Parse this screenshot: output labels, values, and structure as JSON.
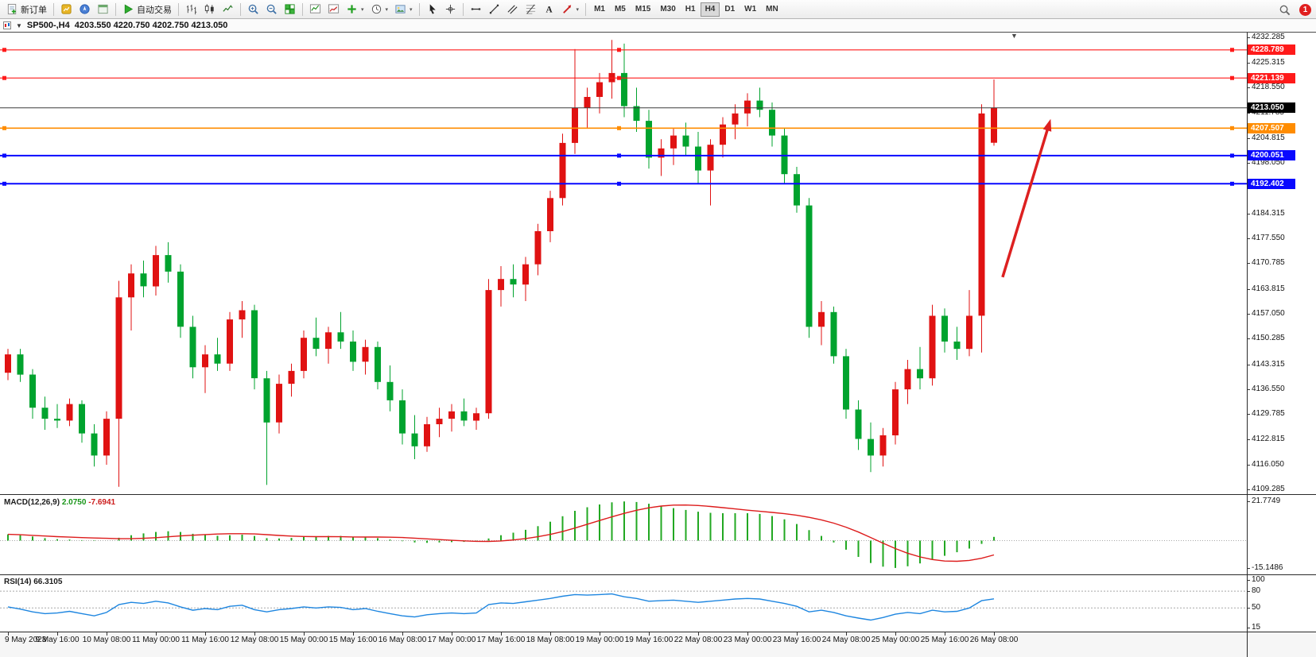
{
  "toolbar": {
    "groups": [
      {
        "items": [
          {
            "name": "new-order",
            "icon": "doc",
            "label": "新订单"
          }
        ]
      },
      {
        "items": [
          {
            "name": "market-watch",
            "icon": "mw"
          },
          {
            "name": "navigator",
            "icon": "nav"
          },
          {
            "name": "data-window",
            "icon": "dw"
          }
        ]
      },
      {
        "items": [
          {
            "name": "autotrading",
            "icon": "play",
            "label": "自动交易"
          }
        ]
      },
      {
        "items": [
          {
            "name": "bar-chart",
            "icon": "bars"
          },
          {
            "name": "candle-chart",
            "icon": "candles"
          },
          {
            "name": "line-chart",
            "icon": "linec"
          }
        ]
      },
      {
        "items": [
          {
            "name": "zoom-in",
            "icon": "zoomin"
          },
          {
            "name": "zoom-out",
            "icon": "zoomout"
          },
          {
            "name": "tile-windows",
            "icon": "grid"
          }
        ]
      },
      {
        "items": [
          {
            "name": "indicators",
            "icon": "ind1"
          },
          {
            "name": "indicator-windows",
            "icon": "ind2"
          },
          {
            "name": "add-indicator",
            "icon": "plus",
            "dd": true
          },
          {
            "name": "periods",
            "icon": "clock",
            "dd": true
          },
          {
            "name": "templates",
            "icon": "tmpl",
            "dd": true
          }
        ]
      },
      {
        "items": [
          {
            "name": "cursor",
            "icon": "cursor"
          },
          {
            "name": "crosshair",
            "icon": "cross"
          }
        ]
      },
      {
        "items": [
          {
            "name": "horizontal-line",
            "icon": "hline"
          },
          {
            "name": "trendline",
            "icon": "tline"
          },
          {
            "name": "equidistant-channel",
            "icon": "channel"
          },
          {
            "name": "fibonacci",
            "icon": "fibo"
          },
          {
            "name": "text-label",
            "icon": "textA"
          },
          {
            "name": "arrows",
            "icon": "arrow",
            "dd": true
          }
        ]
      }
    ],
    "timeframes": [
      "M1",
      "M5",
      "M15",
      "M30",
      "H1",
      "H4",
      "D1",
      "W1",
      "MN"
    ],
    "active_timeframe": "H4",
    "notification_count": "1"
  },
  "chart_title": {
    "symbol_period": "SP500-,H4",
    "ohlc": "4203.550 4220.750 4202.750 4213.050"
  },
  "colors": {
    "bull_candle": "#e01212",
    "bear_candle": "#00a32e",
    "macd_hist": "#22a822",
    "macd_signal": "#dd1c1c",
    "rsi_line": "#1e86e0",
    "arrow": "#dd2020"
  },
  "chart_data": {
    "type": "candlestick",
    "symbol": "SP500-",
    "timeframe": "H4",
    "current_bar": {
      "open": 4203.55,
      "high": 4220.75,
      "low": 4202.75,
      "close": 4213.05
    },
    "price_range": {
      "max": 4233.5,
      "min": 4108.0
    },
    "price_axis_ticks": [
      "4232.285",
      "4225.315",
      "4218.550",
      "4211.785",
      "4204.815",
      "4198.050",
      "4191.285",
      "4184.315",
      "4177.550",
      "4170.785",
      "4163.815",
      "4157.050",
      "4150.285",
      "4143.315",
      "4136.550",
      "4129.785",
      "4122.815",
      "4116.050",
      "4109.285"
    ],
    "time_labels": [
      "9 May 2023",
      "9 May 16:00",
      "10 May 08:00",
      "11 May 00:00",
      "11 May 16:00",
      "12 May 08:00",
      "15 May 00:00",
      "15 May 16:00",
      "16 May 08:00",
      "17 May 00:00",
      "17 May 16:00",
      "18 May 08:00",
      "19 May 00:00",
      "19 May 16:00",
      "22 May 08:00",
      "23 May 00:00",
      "23 May 16:00",
      "24 May 08:00",
      "25 May 00:00",
      "25 May 16:00",
      "26 May 08:00"
    ],
    "hlines": [
      {
        "price": 4228.789,
        "label": "4228.789",
        "color": "#ff1a1a",
        "selected": true,
        "role": "resistance"
      },
      {
        "price": 4221.139,
        "label": "4221.139",
        "color": "#ff1a1a",
        "selected": true,
        "role": "resistance"
      },
      {
        "price": 4213.05,
        "label": "4213.050",
        "color": "#3c3c3c",
        "box": "#000000",
        "selected": false,
        "role": "bid"
      },
      {
        "price": 4207.507,
        "label": "4207.507",
        "color": "#ff8c00",
        "selected": true,
        "role": "level"
      },
      {
        "price": 4200.051,
        "label": "4200.051",
        "color": "#0909ff",
        "selected": true,
        "role": "support"
      },
      {
        "price": 4192.402,
        "label": "4192.402",
        "color": "#0909ff",
        "selected": true,
        "role": "support"
      }
    ],
    "arrow": {
      "from_bar": 80.7,
      "from_price": 4167.0,
      "to_bar": 84.6,
      "to_price": 4210.0
    },
    "candles": [
      [
        4141.0,
        4147.5,
        4139.0,
        4146.0
      ],
      [
        4146.0,
        4147.5,
        4138.5,
        4140.5
      ],
      [
        4140.5,
        4142.0,
        4128.5,
        4131.5
      ],
      [
        4131.5,
        4134.5,
        4125.5,
        4128.5
      ],
      [
        4128.5,
        4132.5,
        4126.0,
        4128.0
      ],
      [
        4128.0,
        4134.0,
        4126.5,
        4132.5
      ],
      [
        4132.5,
        4133.5,
        4122.0,
        4124.5
      ],
      [
        4124.5,
        4127.0,
        4115.5,
        4118.5
      ],
      [
        4118.5,
        4130.5,
        4116.0,
        4128.5
      ],
      [
        4128.5,
        4166.0,
        4110.0,
        4161.5
      ],
      [
        4161.5,
        4170.5,
        4152.5,
        4168.0
      ],
      [
        4168.0,
        4171.5,
        4161.5,
        4164.5
      ],
      [
        4164.5,
        4175.5,
        4162.0,
        4173.0
      ],
      [
        4173.0,
        4176.5,
        4165.5,
        4168.5
      ],
      [
        4168.5,
        4170.5,
        4150.5,
        4153.5
      ],
      [
        4153.5,
        4156.5,
        4139.5,
        4142.5
      ],
      [
        4142.5,
        4148.5,
        4135.5,
        4146.0
      ],
      [
        4146.0,
        4150.5,
        4141.5,
        4143.5
      ],
      [
        4143.5,
        4157.5,
        4141.5,
        4155.5
      ],
      [
        4155.5,
        4160.5,
        4150.5,
        4158.0
      ],
      [
        4158.0,
        4159.5,
        4136.5,
        4139.5
      ],
      [
        4139.5,
        4141.5,
        4110.5,
        4127.5
      ],
      [
        4127.5,
        4140.5,
        4124.5,
        4138.0
      ],
      [
        4138.0,
        4143.5,
        4134.5,
        4141.5
      ],
      [
        4141.5,
        4152.5,
        4139.5,
        4150.5
      ],
      [
        4150.5,
        4156.0,
        4145.5,
        4147.5
      ],
      [
        4147.5,
        4153.5,
        4143.5,
        4152.0
      ],
      [
        4152.0,
        4157.5,
        4147.5,
        4149.5
      ],
      [
        4149.5,
        4152.5,
        4141.5,
        4144.0
      ],
      [
        4144.0,
        4150.0,
        4140.5,
        4148.0
      ],
      [
        4148.0,
        4149.5,
        4136.5,
        4138.5
      ],
      [
        4138.5,
        4143.0,
        4130.5,
        4133.5
      ],
      [
        4133.5,
        4136.5,
        4121.5,
        4124.5
      ],
      [
        4124.5,
        4129.5,
        4117.5,
        4121.0
      ],
      [
        4121.0,
        4129.0,
        4119.5,
        4127.0
      ],
      [
        4127.0,
        4131.5,
        4123.5,
        4128.5
      ],
      [
        4128.5,
        4132.5,
        4125.0,
        4130.5
      ],
      [
        4130.5,
        4134.0,
        4126.5,
        4128.0
      ],
      [
        4128.0,
        4131.5,
        4125.5,
        4130.0
      ],
      [
        4130.0,
        4166.5,
        4128.5,
        4163.5
      ],
      [
        4163.5,
        4170.0,
        4159.0,
        4166.5
      ],
      [
        4166.5,
        4170.5,
        4161.5,
        4165.0
      ],
      [
        4165.0,
        4172.5,
        4160.5,
        4170.5
      ],
      [
        4170.5,
        4181.5,
        4167.5,
        4179.5
      ],
      [
        4179.5,
        4190.5,
        4176.5,
        4188.5
      ],
      [
        4188.5,
        4206.0,
        4186.5,
        4203.5
      ],
      [
        4203.5,
        4229.0,
        4200.5,
        4213.0
      ],
      [
        4213.0,
        4218.5,
        4207.5,
        4216.0
      ],
      [
        4216.0,
        4222.5,
        4211.5,
        4220.0
      ],
      [
        4220.0,
        4231.5,
        4215.5,
        4222.5
      ],
      [
        4222.5,
        4230.5,
        4210.5,
        4213.5
      ],
      [
        4213.5,
        4218.5,
        4206.5,
        4209.5
      ],
      [
        4209.5,
        4212.5,
        4196.5,
        4199.5
      ],
      [
        4199.5,
        4204.5,
        4194.5,
        4202.0
      ],
      [
        4202.0,
        4207.5,
        4197.5,
        4205.5
      ],
      [
        4205.5,
        4209.0,
        4200.0,
        4202.5
      ],
      [
        4202.5,
        4206.5,
        4192.5,
        4196.0
      ],
      [
        4196.0,
        4204.5,
        4186.5,
        4203.0
      ],
      [
        4203.0,
        4210.5,
        4199.5,
        4208.5
      ],
      [
        4208.5,
        4214.0,
        4204.5,
        4211.5
      ],
      [
        4211.5,
        4217.0,
        4208.0,
        4215.0
      ],
      [
        4215.0,
        4218.5,
        4210.5,
        4212.5
      ],
      [
        4212.5,
        4214.5,
        4202.5,
        4205.5
      ],
      [
        4205.5,
        4207.5,
        4192.5,
        4195.0
      ],
      [
        4195.0,
        4197.0,
        4184.5,
        4186.5
      ],
      [
        4186.5,
        4188.5,
        4150.5,
        4153.5
      ],
      [
        4153.5,
        4160.5,
        4148.5,
        4157.5
      ],
      [
        4157.5,
        4159.0,
        4143.5,
        4145.5
      ],
      [
        4145.5,
        4147.5,
        4128.5,
        4131.0
      ],
      [
        4131.0,
        4133.5,
        4120.0,
        4123.0
      ],
      [
        4123.0,
        4127.5,
        4114.0,
        4118.5
      ],
      [
        4118.5,
        4126.0,
        4115.5,
        4124.0
      ],
      [
        4124.0,
        4138.5,
        4121.5,
        4136.5
      ],
      [
        4136.5,
        4144.5,
        4132.5,
        4142.0
      ],
      [
        4142.0,
        4148.0,
        4136.5,
        4139.5
      ],
      [
        4139.5,
        4159.5,
        4137.5,
        4156.5
      ],
      [
        4156.5,
        4158.5,
        4146.5,
        4149.5
      ],
      [
        4149.5,
        4153.5,
        4144.5,
        4147.5
      ],
      [
        4147.5,
        4163.5,
        4145.5,
        4156.5
      ],
      [
        4156.5,
        4214.0,
        4146.5,
        4211.5
      ],
      [
        4203.55,
        4220.75,
        4202.75,
        4213.05
      ]
    ],
    "macd": {
      "name": "MACD(12,26,9)",
      "main_value": "2.0750",
      "signal_value": "-7.6941",
      "axis_max": "21.7749",
      "axis_min": "-15.1486",
      "histogram": [
        3.5,
        3.0,
        2.3,
        1.4,
        0.8,
        0.6,
        0.3,
        -0.2,
        0.0,
        1.6,
        3.0,
        4.0,
        4.8,
        5.2,
        4.8,
        3.8,
        3.1,
        2.7,
        3.0,
        3.3,
        2.6,
        1.4,
        1.2,
        1.5,
        2.0,
        2.4,
        2.6,
        2.6,
        2.2,
        2.0,
        1.4,
        0.6,
        -0.3,
        -1.0,
        -1.2,
        -1.0,
        -0.8,
        -0.7,
        -0.6,
        1.2,
        3.0,
        4.4,
        6.0,
        8.0,
        10.5,
        13.5,
        16.5,
        18.5,
        20.0,
        21.2,
        21.7,
        21.4,
        20.4,
        19.2,
        18.0,
        17.0,
        16.0,
        15.4,
        15.2,
        15.2,
        15.2,
        14.8,
        13.6,
        11.8,
        9.2,
        5.8,
        2.6,
        -1.0,
        -5.0,
        -9.0,
        -12.4,
        -14.4,
        -15.1,
        -14.2,
        -12.6,
        -10.4,
        -8.4,
        -6.4,
        -4.4,
        -1.8,
        2.075
      ],
      "signal_period": 9
    },
    "rsi": {
      "name": "RSI(14)",
      "value": "66.3105",
      "axis_labels": [
        "100",
        "80",
        "50",
        "15"
      ],
      "levels": [
        80,
        50
      ],
      "scale_min": 15,
      "scale_max": 100,
      "values": [
        52,
        48,
        43,
        40,
        41,
        44,
        40,
        36,
        42,
        56,
        60,
        58,
        62,
        59,
        52,
        46,
        49,
        47,
        53,
        55,
        47,
        43,
        47,
        49,
        52,
        50,
        52,
        51,
        47,
        49,
        44,
        40,
        36,
        34,
        38,
        40,
        41,
        40,
        41,
        56,
        59,
        58,
        61,
        64,
        67,
        71,
        74,
        73,
        74,
        75,
        70,
        67,
        62,
        63,
        64,
        62,
        60,
        62,
        64,
        66,
        67,
        66,
        62,
        58,
        53,
        43,
        46,
        42,
        36,
        32,
        28.5,
        33,
        39,
        42,
        40,
        46,
        43,
        44,
        50,
        63,
        66.31
      ]
    }
  }
}
